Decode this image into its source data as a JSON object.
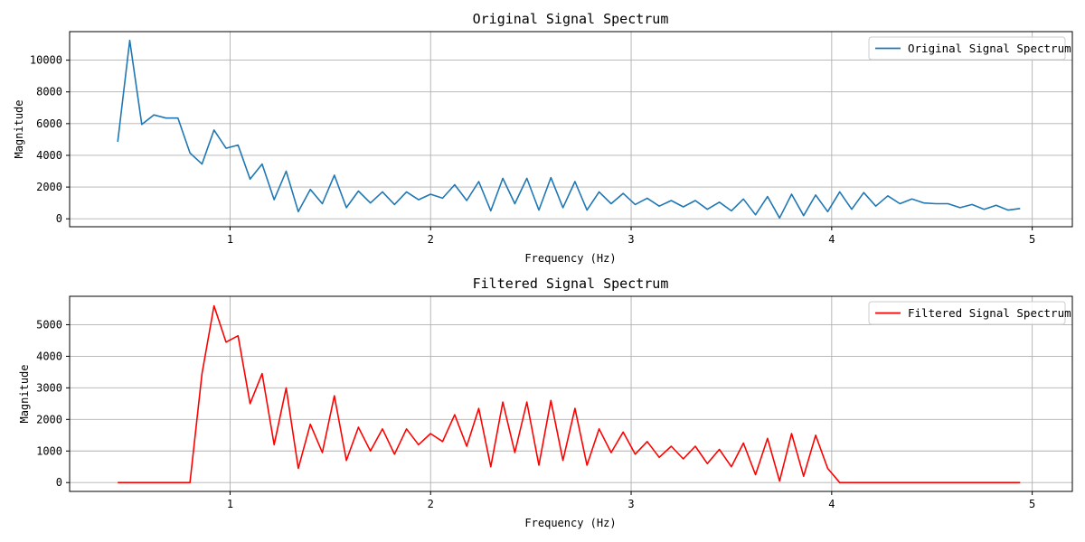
{
  "chart_data": [
    {
      "type": "line",
      "title": "Original Signal Spectrum",
      "xlabel": "Frequency (Hz)",
      "ylabel": "Magnitude",
      "xlim": [
        0.2,
        5.2
      ],
      "ylim": [
        -500,
        11800
      ],
      "xticks": [
        1,
        2,
        3,
        4,
        5
      ],
      "xtick_labels": [
        "1",
        "2",
        "3",
        "4",
        "5"
      ],
      "yticks": [
        0,
        2000,
        4000,
        6000,
        8000,
        10000
      ],
      "ytick_labels": [
        "0",
        "2000",
        "4000",
        "6000",
        "8000",
        "10000"
      ],
      "grid": true,
      "legend": "top-right",
      "series": [
        {
          "name": "Original Signal Spectrum",
          "color": "#1f77b4",
          "x": [
            0.44,
            0.5,
            0.56,
            0.62,
            0.68,
            0.74,
            0.8,
            0.86,
            0.92,
            0.98,
            1.04,
            1.1,
            1.16,
            1.22,
            1.28,
            1.34,
            1.4,
            1.46,
            1.52,
            1.58,
            1.64,
            1.7,
            1.76,
            1.82,
            1.88,
            1.94,
            2.0,
            2.06,
            2.12,
            2.18,
            2.24,
            2.3,
            2.36,
            2.42,
            2.48,
            2.54,
            2.6,
            2.66,
            2.72,
            2.78,
            2.84,
            2.9,
            2.96,
            3.02,
            3.08,
            3.14,
            3.2,
            3.26,
            3.32,
            3.38,
            3.44,
            3.5,
            3.56,
            3.62,
            3.68,
            3.74,
            3.8,
            3.86,
            3.92,
            3.98,
            4.04,
            4.1,
            4.16,
            4.22,
            4.28,
            4.34,
            4.4,
            4.46,
            4.52,
            4.58,
            4.64,
            4.7,
            4.76,
            4.82,
            4.88,
            4.94
          ],
          "y": [
            4850,
            11250,
            5950,
            6550,
            6350,
            6350,
            4150,
            3450,
            5600,
            4450,
            4650,
            2500,
            3450,
            1200,
            3000,
            450,
            1850,
            950,
            2750,
            700,
            1750,
            1000,
            1700,
            900,
            1700,
            1200,
            1550,
            1300,
            2150,
            1150,
            2350,
            500,
            2550,
            950,
            2550,
            550,
            2600,
            700,
            2350,
            550,
            1700,
            950,
            1600,
            900,
            1300,
            800,
            1150,
            750,
            1150,
            600,
            1050,
            500,
            1250,
            250,
            1400,
            50,
            1550,
            200,
            1500,
            450,
            1700,
            600,
            1650,
            800,
            1450,
            950,
            1250,
            1000,
            950,
            950,
            700,
            900,
            600,
            850,
            550,
            650
          ]
        }
      ]
    },
    {
      "type": "line",
      "title": "Filtered Signal Spectrum",
      "xlabel": "Frequency (Hz)",
      "ylabel": "Magnitude",
      "xlim": [
        0.2,
        5.2
      ],
      "ylim": [
        -280,
        5900
      ],
      "xticks": [
        1,
        2,
        3,
        4,
        5
      ],
      "xtick_labels": [
        "1",
        "2",
        "3",
        "4",
        "5"
      ],
      "yticks": [
        0,
        1000,
        2000,
        3000,
        4000,
        5000
      ],
      "ytick_labels": [
        "0",
        "1000",
        "2000",
        "3000",
        "4000",
        "5000"
      ],
      "grid": true,
      "legend": "top-right",
      "series": [
        {
          "name": "Filtered Signal Spectrum",
          "color": "#ff0000",
          "x": [
            0.44,
            0.5,
            0.56,
            0.62,
            0.68,
            0.74,
            0.8,
            0.86,
            0.92,
            0.98,
            1.04,
            1.1,
            1.16,
            1.22,
            1.28,
            1.34,
            1.4,
            1.46,
            1.52,
            1.58,
            1.64,
            1.7,
            1.76,
            1.82,
            1.88,
            1.94,
            2.0,
            2.06,
            2.12,
            2.18,
            2.24,
            2.3,
            2.36,
            2.42,
            2.48,
            2.54,
            2.6,
            2.66,
            2.72,
            2.78,
            2.84,
            2.9,
            2.96,
            3.02,
            3.08,
            3.14,
            3.2,
            3.26,
            3.32,
            3.38,
            3.44,
            3.5,
            3.56,
            3.62,
            3.68,
            3.74,
            3.8,
            3.86,
            3.92,
            3.98,
            4.04,
            4.1,
            4.16,
            4.22,
            4.28,
            4.34,
            4.4,
            4.46,
            4.52,
            4.58,
            4.64,
            4.7,
            4.76,
            4.82,
            4.88,
            4.94
          ],
          "y": [
            0,
            0,
            0,
            0,
            0,
            0,
            0,
            3450,
            5600,
            4450,
            4650,
            2500,
            3450,
            1200,
            3000,
            450,
            1850,
            950,
            2750,
            700,
            1750,
            1000,
            1700,
            900,
            1700,
            1200,
            1550,
            1300,
            2150,
            1150,
            2350,
            500,
            2550,
            950,
            2550,
            550,
            2600,
            700,
            2350,
            550,
            1700,
            950,
            1600,
            900,
            1300,
            800,
            1150,
            750,
            1150,
            600,
            1050,
            500,
            1250,
            250,
            1400,
            50,
            1550,
            200,
            1500,
            450,
            0,
            0,
            0,
            0,
            0,
            0,
            0,
            0,
            0,
            0,
            0,
            0,
            0,
            0,
            0,
            0
          ]
        }
      ]
    }
  ]
}
